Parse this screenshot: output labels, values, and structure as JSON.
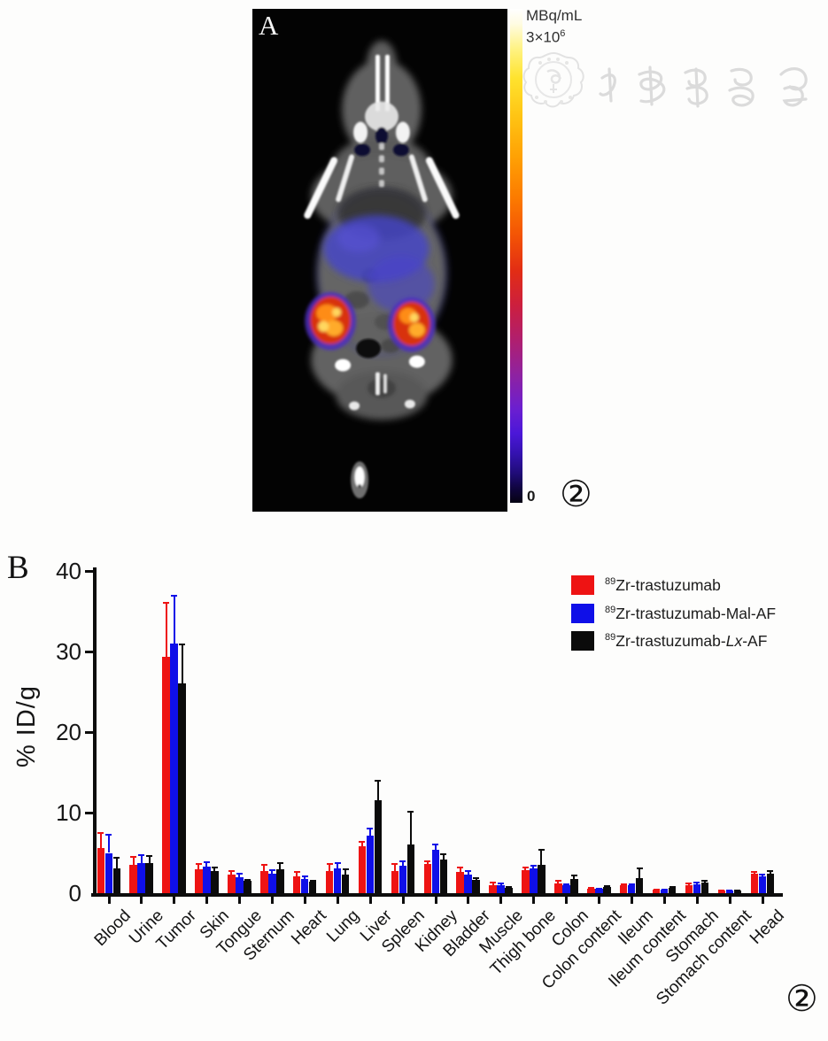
{
  "panel_a": {
    "label": "A",
    "figure_number": "②",
    "colorbar": {
      "unit": "MBq/mL",
      "max_coeff": "3×10",
      "max_exponent": "6",
      "min": "0",
      "gradient_top_to_bottom": [
        "#ffffff",
        "#fff385",
        "#ffc313",
        "#fc7c00",
        "#e22d14",
        "#b01f6e",
        "#6b1fd0",
        "#3412b0",
        "#100540",
        "#060212"
      ]
    },
    "image_description": "PET/CT coronal mouse image: gray CT body, white skeleton, blue liver uptake, two orange tumor hotspots at flanks, bright tail-tip spot",
    "watermark_text": "中华医学会"
  },
  "panel_b": {
    "label": "B",
    "figure_number": "②",
    "legend": [
      {
        "sup": "89",
        "pre": "Zr-trastuzumab",
        "italic": "",
        "post": "",
        "color": "#ee1313"
      },
      {
        "sup": "89",
        "pre": "Zr-trastuzumab-Mal-AF",
        "italic": "",
        "post": "",
        "color": "#0f0fe8"
      },
      {
        "sup": "89",
        "pre": "Zr-trastuzumab-",
        "italic": "Lx",
        "post": "-AF",
        "color": "#0b0b0b"
      }
    ]
  },
  "chart_data": {
    "type": "bar",
    "title": "",
    "xlabel": "",
    "ylabel": "% ID/g",
    "ylim": [
      0,
      40
    ],
    "yticks": [
      0,
      10,
      20,
      30,
      40
    ],
    "grid": false,
    "legend_position": "top-right",
    "categories": [
      "Blood",
      "Urine",
      "Tumor",
      "Skin",
      "Tongue",
      "Sternum",
      "Heart",
      "Lung",
      "Liver",
      "Spleen",
      "Kidney",
      "Bladder",
      "Muscle",
      "Thigh bone",
      "Colon",
      "Colon content",
      "Ileum",
      "Ileum content",
      "Stomach",
      "Stomach content",
      "Head"
    ],
    "series": [
      {
        "name": "89Zr-trastuzumab",
        "color": "#ee1313",
        "values": [
          5.6,
          3.5,
          29.3,
          3.0,
          2.3,
          2.8,
          2.1,
          2.8,
          5.8,
          2.8,
          3.6,
          2.6,
          1.0,
          2.9,
          1.2,
          0.6,
          1.0,
          0.4,
          1.0,
          0.3,
          2.4
        ],
        "errors": [
          2.0,
          1.1,
          6.9,
          0.7,
          0.6,
          0.8,
          0.7,
          0.9,
          0.7,
          0.9,
          0.5,
          0.7,
          0.4,
          0.4,
          0.4,
          0.2,
          0.2,
          0.2,
          0.3,
          0.1,
          0.3
        ]
      },
      {
        "name": "89Zr-trastuzumab-Mal-AF",
        "color": "#0f0fe8",
        "values": [
          5.0,
          3.7,
          31.0,
          3.3,
          2.0,
          2.4,
          1.8,
          3.1,
          7.1,
          3.4,
          5.4,
          2.3,
          1.0,
          3.1,
          1.0,
          0.5,
          1.0,
          0.4,
          1.1,
          0.3,
          2.1
        ],
        "errors": [
          2.4,
          1.1,
          6.0,
          0.7,
          0.5,
          0.6,
          0.4,
          0.7,
          1.0,
          0.7,
          0.7,
          0.6,
          0.3,
          0.4,
          0.2,
          0.2,
          0.2,
          0.1,
          0.3,
          0.1,
          0.3
        ]
      },
      {
        "name": "89Zr-trastuzumab-Lx-AF",
        "color": "#0b0b0b",
        "values": [
          3.1,
          3.7,
          26.0,
          2.8,
          1.5,
          3.0,
          1.4,
          2.3,
          11.5,
          6.0,
          4.2,
          1.7,
          0.7,
          3.5,
          1.8,
          0.8,
          1.9,
          0.7,
          1.3,
          0.3,
          2.4
        ],
        "errors": [
          1.4,
          1.0,
          5.0,
          0.5,
          0.3,
          0.9,
          0.3,
          0.8,
          2.6,
          4.2,
          0.7,
          0.3,
          0.2,
          2.0,
          0.5,
          0.2,
          1.3,
          0.2,
          0.3,
          0.1,
          0.5
        ]
      }
    ]
  }
}
